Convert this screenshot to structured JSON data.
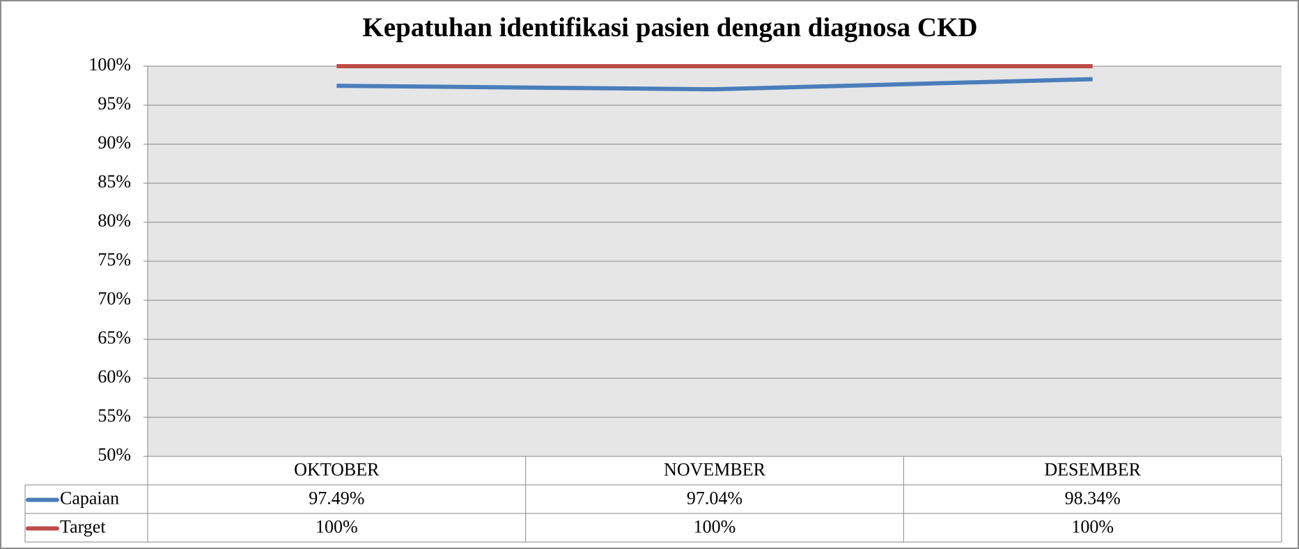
{
  "chart_data": {
    "type": "line",
    "title": "Kepatuhan identifikasi pasien dengan diagnosa CKD",
    "categories": [
      "OKTOBER",
      "NOVEMBER",
      "DESEMBER"
    ],
    "series": [
      {
        "name": "Capaian",
        "color": "#4a7ebb",
        "values": [
          97.49,
          97.04,
          98.34
        ],
        "value_labels": [
          "97.49%",
          "97.04%",
          "98.34%"
        ]
      },
      {
        "name": "Target",
        "color": "#be4b48",
        "values": [
          100,
          100,
          100
        ],
        "value_labels": [
          "100%",
          "100%",
          "100%"
        ]
      }
    ],
    "ylim": [
      50,
      100
    ],
    "yticks": [
      {
        "value": 50,
        "label": "50%"
      },
      {
        "value": 55,
        "label": "55%"
      },
      {
        "value": 60,
        "label": "60%"
      },
      {
        "value": 65,
        "label": "65%"
      },
      {
        "value": 70,
        "label": "70%"
      },
      {
        "value": 75,
        "label": "75%"
      },
      {
        "value": 80,
        "label": "80%"
      },
      {
        "value": 85,
        "label": "85%"
      },
      {
        "value": 90,
        "label": "90%"
      },
      {
        "value": 95,
        "label": "95%"
      },
      {
        "value": 100,
        "label": "100%"
      }
    ],
    "grid": true
  }
}
